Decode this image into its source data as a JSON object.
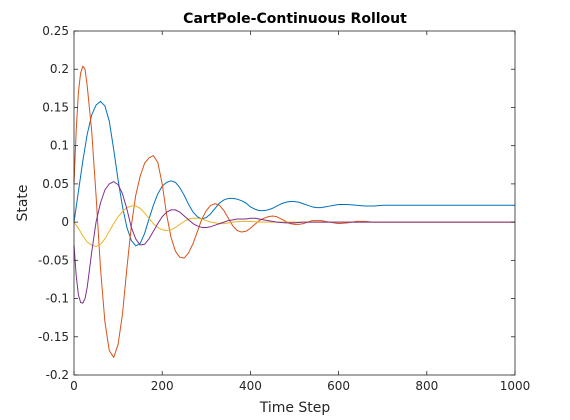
{
  "chart_data": {
    "type": "line",
    "title": "CartPole-Continuous Rollout",
    "xlabel": "Time Step",
    "ylabel": "State",
    "xlim": [
      0,
      1000
    ],
    "ylim": [
      -0.2,
      0.25
    ],
    "x_ticks": [
      "0",
      "200",
      "400",
      "600",
      "800",
      "1000"
    ],
    "y_ticks": [
      "-0.2",
      "-0.15",
      "-0.1",
      "-0.05",
      "0",
      "0.05",
      "0.1",
      "0.15",
      "0.2",
      "0.25"
    ],
    "grid": false,
    "box": true,
    "series": [
      {
        "color": "#0072BD",
        "points": [
          [
            0,
            0
          ],
          [
            10,
            0.04
          ],
          [
            20,
            0.08
          ],
          [
            30,
            0.115
          ],
          [
            40,
            0.14
          ],
          [
            50,
            0.153
          ],
          [
            60,
            0.158
          ],
          [
            70,
            0.152
          ],
          [
            80,
            0.132
          ],
          [
            90,
            0.095
          ],
          [
            100,
            0.055
          ],
          [
            110,
            0.02
          ],
          [
            120,
            -0.007
          ],
          [
            130,
            -0.024
          ],
          [
            140,
            -0.031
          ],
          [
            150,
            -0.028
          ],
          [
            160,
            -0.015
          ],
          [
            170,
            0.004
          ],
          [
            180,
            0.022
          ],
          [
            190,
            0.037
          ],
          [
            200,
            0.047
          ],
          [
            210,
            0.052
          ],
          [
            220,
            0.054
          ],
          [
            230,
            0.052
          ],
          [
            240,
            0.045
          ],
          [
            250,
            0.035
          ],
          [
            260,
            0.023
          ],
          [
            270,
            0.013
          ],
          [
            280,
            0.007
          ],
          [
            290,
            0.004
          ],
          [
            300,
            0.006
          ],
          [
            310,
            0.011
          ],
          [
            320,
            0.018
          ],
          [
            330,
            0.025
          ],
          [
            340,
            0.029
          ],
          [
            350,
            0.031
          ],
          [
            360,
            0.031
          ],
          [
            370,
            0.03
          ],
          [
            380,
            0.028
          ],
          [
            390,
            0.025
          ],
          [
            400,
            0.02
          ],
          [
            410,
            0.017
          ],
          [
            420,
            0.015
          ],
          [
            430,
            0.015
          ],
          [
            440,
            0.016
          ],
          [
            450,
            0.018
          ],
          [
            460,
            0.021
          ],
          [
            470,
            0.024
          ],
          [
            480,
            0.026
          ],
          [
            490,
            0.027
          ],
          [
            500,
            0.027
          ],
          [
            510,
            0.026
          ],
          [
            520,
            0.024
          ],
          [
            530,
            0.022
          ],
          [
            540,
            0.02
          ],
          [
            550,
            0.019
          ],
          [
            560,
            0.019
          ],
          [
            570,
            0.02
          ],
          [
            580,
            0.021
          ],
          [
            590,
            0.022
          ],
          [
            600,
            0.023
          ],
          [
            620,
            0.023
          ],
          [
            640,
            0.022
          ],
          [
            660,
            0.021
          ],
          [
            680,
            0.021
          ],
          [
            700,
            0.022
          ],
          [
            720,
            0.022
          ],
          [
            740,
            0.022
          ],
          [
            760,
            0.022
          ],
          [
            780,
            0.022
          ],
          [
            800,
            0.022
          ],
          [
            850,
            0.022
          ],
          [
            900,
            0.022
          ],
          [
            950,
            0.022
          ],
          [
            1000,
            0.022
          ]
        ]
      },
      {
        "color": "#D95319",
        "points": [
          [
            0,
            0.05
          ],
          [
            5,
            0.12
          ],
          [
            10,
            0.17
          ],
          [
            15,
            0.195
          ],
          [
            20,
            0.204
          ],
          [
            25,
            0.2
          ],
          [
            30,
            0.178
          ],
          [
            40,
            0.12
          ],
          [
            50,
            0.035
          ],
          [
            60,
            -0.06
          ],
          [
            70,
            -0.13
          ],
          [
            80,
            -0.168
          ],
          [
            90,
            -0.177
          ],
          [
            100,
            -0.16
          ],
          [
            110,
            -0.12
          ],
          [
            120,
            -0.06
          ],
          [
            130,
            -0.005
          ],
          [
            140,
            0.035
          ],
          [
            150,
            0.06
          ],
          [
            160,
            0.077
          ],
          [
            170,
            0.084
          ],
          [
            180,
            0.087
          ],
          [
            190,
            0.078
          ],
          [
            200,
            0.05
          ],
          [
            210,
            0.01
          ],
          [
            220,
            -0.02
          ],
          [
            230,
            -0.038
          ],
          [
            240,
            -0.046
          ],
          [
            250,
            -0.047
          ],
          [
            260,
            -0.04
          ],
          [
            270,
            -0.028
          ],
          [
            280,
            -0.012
          ],
          [
            290,
            0.004
          ],
          [
            300,
            0.015
          ],
          [
            310,
            0.022
          ],
          [
            320,
            0.024
          ],
          [
            330,
            0.022
          ],
          [
            340,
            0.015
          ],
          [
            350,
            0.005
          ],
          [
            360,
            -0.005
          ],
          [
            370,
            -0.011
          ],
          [
            380,
            -0.013
          ],
          [
            390,
            -0.012
          ],
          [
            400,
            -0.008
          ],
          [
            410,
            -0.003
          ],
          [
            420,
            0.002
          ],
          [
            430,
            0.005
          ],
          [
            440,
            0.007
          ],
          [
            450,
            0.008
          ],
          [
            460,
            0.007
          ],
          [
            470,
            0.004
          ],
          [
            480,
            0.001
          ],
          [
            490,
            -0.002
          ],
          [
            500,
            -0.003
          ],
          [
            510,
            -0.003
          ],
          [
            520,
            -0.002
          ],
          [
            530,
            0
          ],
          [
            540,
            0.002
          ],
          [
            550,
            0.002
          ],
          [
            560,
            0.002
          ],
          [
            570,
            0.001
          ],
          [
            580,
            0
          ],
          [
            590,
            -0.001
          ],
          [
            600,
            -0.002
          ],
          [
            620,
            -0.001
          ],
          [
            640,
            0.001
          ],
          [
            660,
            0.001
          ],
          [
            680,
            0
          ],
          [
            700,
            0
          ],
          [
            750,
            0
          ],
          [
            800,
            0
          ],
          [
            850,
            0
          ],
          [
            900,
            0
          ],
          [
            1000,
            0
          ]
        ]
      },
      {
        "color": "#EDB120",
        "points": [
          [
            0,
            0
          ],
          [
            10,
            -0.008
          ],
          [
            20,
            -0.018
          ],
          [
            30,
            -0.026
          ],
          [
            40,
            -0.03
          ],
          [
            50,
            -0.032
          ],
          [
            60,
            -0.029
          ],
          [
            70,
            -0.022
          ],
          [
            80,
            -0.012
          ],
          [
            90,
            -0.002
          ],
          [
            100,
            0.007
          ],
          [
            110,
            0.014
          ],
          [
            120,
            0.019
          ],
          [
            130,
            0.021
          ],
          [
            140,
            0.021
          ],
          [
            150,
            0.018
          ],
          [
            160,
            0.012
          ],
          [
            170,
            0.005
          ],
          [
            180,
            -0.002
          ],
          [
            190,
            -0.007
          ],
          [
            200,
            -0.01
          ],
          [
            210,
            -0.011
          ],
          [
            220,
            -0.01
          ],
          [
            230,
            -0.007
          ],
          [
            240,
            -0.003
          ],
          [
            250,
            0.001
          ],
          [
            260,
            0.004
          ],
          [
            270,
            0.005
          ],
          [
            280,
            0.005
          ],
          [
            290,
            0.004
          ],
          [
            300,
            0.002
          ],
          [
            310,
            0
          ],
          [
            320,
            -0.001
          ],
          [
            330,
            -0.002
          ],
          [
            340,
            -0.002
          ],
          [
            350,
            -0.001
          ],
          [
            360,
            0
          ],
          [
            380,
            0.001
          ],
          [
            400,
            0.001
          ],
          [
            420,
            0
          ],
          [
            450,
            0
          ],
          [
            500,
            0
          ],
          [
            600,
            0
          ],
          [
            700,
            0
          ],
          [
            800,
            0
          ],
          [
            900,
            0
          ],
          [
            1000,
            0
          ]
        ]
      },
      {
        "color": "#7E2F8E",
        "points": [
          [
            0,
            -0.03
          ],
          [
            5,
            -0.07
          ],
          [
            10,
            -0.095
          ],
          [
            15,
            -0.105
          ],
          [
            20,
            -0.106
          ],
          [
            25,
            -0.1
          ],
          [
            30,
            -0.085
          ],
          [
            40,
            -0.04
          ],
          [
            50,
            0
          ],
          [
            60,
            0.025
          ],
          [
            70,
            0.042
          ],
          [
            80,
            0.05
          ],
          [
            90,
            0.053
          ],
          [
            100,
            0.049
          ],
          [
            110,
            0.037
          ],
          [
            120,
            0.017
          ],
          [
            130,
            -0.007
          ],
          [
            140,
            -0.022
          ],
          [
            150,
            -0.03
          ],
          [
            160,
            -0.029
          ],
          [
            170,
            -0.022
          ],
          [
            180,
            -0.012
          ],
          [
            190,
            -0.002
          ],
          [
            200,
            0.007
          ],
          [
            210,
            0.013
          ],
          [
            220,
            0.016
          ],
          [
            230,
            0.016
          ],
          [
            240,
            0.013
          ],
          [
            250,
            0.008
          ],
          [
            260,
            0.003
          ],
          [
            270,
            -0.002
          ],
          [
            280,
            -0.005
          ],
          [
            290,
            -0.007
          ],
          [
            300,
            -0.007
          ],
          [
            310,
            -0.006
          ],
          [
            320,
            -0.004
          ],
          [
            330,
            -0.002
          ],
          [
            340,
            0
          ],
          [
            350,
            0.002
          ],
          [
            360,
            0.003
          ],
          [
            370,
            0.004
          ],
          [
            380,
            0.004
          ],
          [
            390,
            0.004
          ],
          [
            400,
            0.005
          ],
          [
            410,
            0.005
          ],
          [
            420,
            0.004
          ],
          [
            430,
            0.003
          ],
          [
            440,
            0.002
          ],
          [
            450,
            0.001
          ],
          [
            460,
            0
          ],
          [
            480,
            -0.001
          ],
          [
            500,
            -0.001
          ],
          [
            520,
            0
          ],
          [
            550,
            0
          ],
          [
            600,
            0
          ],
          [
            700,
            0
          ],
          [
            800,
            0
          ],
          [
            900,
            0
          ],
          [
            1000,
            0
          ]
        ]
      }
    ]
  }
}
